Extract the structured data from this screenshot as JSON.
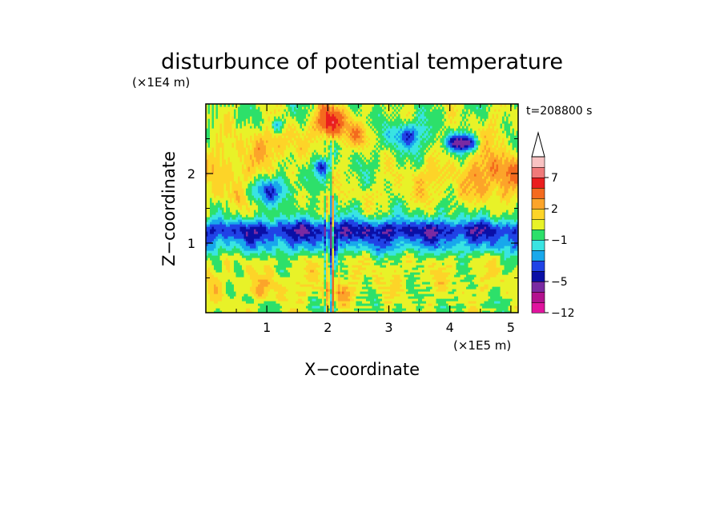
{
  "chart_data": {
    "type": "heatmap",
    "title": "disturbunce of potential temperature",
    "xlabel": "X−coordinate",
    "ylabel": "Z−coordinate",
    "x_scale_label": "(×1E5 m)",
    "y_scale_label": "(×1E4 m)",
    "time_label": "t=208800 s",
    "xlim": [
      0,
      5.12
    ],
    "ylim": [
      0,
      3.0
    ],
    "x_ticks": [
      "1",
      "2",
      "3",
      "4",
      "5"
    ],
    "y_ticks": [
      "1",
      "2"
    ],
    "colorbar_ticks": [
      "−12",
      "−5",
      "−1",
      "2",
      "7"
    ],
    "colorbar_colors": [
      "#e0149e",
      "#b3128e",
      "#7a2aa2",
      "#0a0fa6",
      "#2043e6",
      "#18a8ec",
      "#39e4e2",
      "#2de06a",
      "#e8f228",
      "#fdd428",
      "#fca42a",
      "#f46a1e",
      "#ea1e1e",
      "#f07a7a",
      "#f8c2c2"
    ],
    "levels": [
      -12,
      -9,
      -7,
      -5,
      -4,
      -3,
      -2,
      -1,
      0,
      1,
      2,
      3,
      5,
      7,
      9,
      12
    ]
  }
}
